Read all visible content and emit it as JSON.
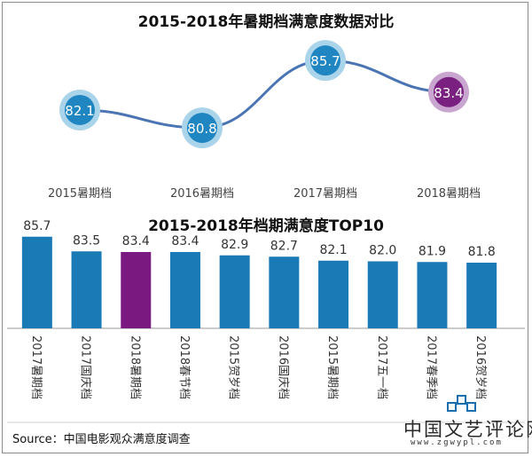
{
  "chart_data": [
    {
      "type": "line",
      "title": "2015-2018年暑期档满意度数据对比",
      "categories": [
        "2015暑期档",
        "2016暑期档",
        "2017暑期档",
        "2018暑期档"
      ],
      "values": [
        82.1,
        80.8,
        85.7,
        83.4
      ],
      "highlight_index": 3,
      "colors": {
        "line": "#4a74b4",
        "marker": "#1f86c2",
        "marker_ring": "#a9d4ea",
        "highlight": "#7a2080",
        "highlight_ring": "#c9a6cf"
      }
    },
    {
      "type": "bar",
      "title": "2015-2018年档期满意度TOP10",
      "categories": [
        "2017暑期档",
        "2017国庆档",
        "2018暑期档",
        "2018春节档",
        "2015贺岁档",
        "2016国庆档",
        "2015暑期档",
        "2017五一档",
        "2017春季档",
        "2016贺岁档"
      ],
      "values": [
        85.7,
        83.5,
        83.4,
        83.4,
        82.9,
        82.7,
        82.1,
        82.0,
        81.9,
        81.8
      ],
      "highlight_index": 2,
      "colors": {
        "bar": "#1a7ab6",
        "highlight": "#7a1a80"
      }
    }
  ],
  "source": "Source：中国电影观众满意度调查",
  "watermark": {
    "text": "中国文艺评论网",
    "url": "www.zgwypl.com"
  }
}
